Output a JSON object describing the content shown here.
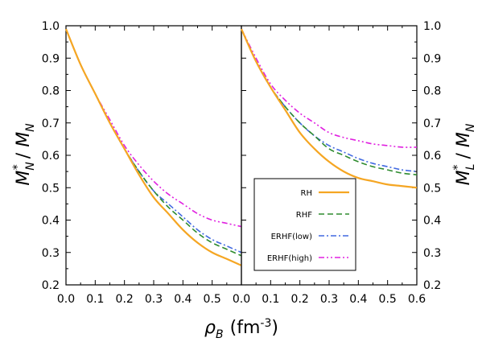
{
  "colors": {
    "RH": "#f5a623",
    "RHF": "#2e8b2e",
    "ERHF(low)": "#4169e1",
    "ERHF(high)": "#e020e0"
  },
  "labels": {
    "x_prefix": "ρ",
    "x_sub": "B",
    "x_unit": "(fm",
    "x_exp": "-3",
    "x_close": ")",
    "yleft_base": "M",
    "yleft_sup": "*",
    "yleft_sub": "N",
    "yleft_sep": " / ",
    "yleft_den": "M",
    "yleft_den_sub": "N",
    "yright_base": "M",
    "yright_sup": "*",
    "yright_sub": "L",
    "yright_sep": " / ",
    "yright_den": "M",
    "yright_den_sub": "N"
  },
  "chart_data": [
    {
      "type": "line",
      "panel": "left",
      "ylabel": "M_N^* / M_N",
      "xlim": [
        0,
        0.6
      ],
      "ylim": [
        0.2,
        1.0
      ],
      "xticks": [
        "0.0",
        "0.1",
        "0.2",
        "0.3",
        "0.4",
        "0.5"
      ],
      "yticks": [
        "0.2",
        "0.3",
        "0.4",
        "0.5",
        "0.6",
        "0.7",
        "0.8",
        "0.9",
        "1.0"
      ],
      "x": [
        0.0,
        0.05,
        0.1,
        0.15,
        0.2,
        0.25,
        0.3,
        0.35,
        0.4,
        0.45,
        0.5,
        0.55,
        0.6
      ],
      "series": [
        {
          "name": "RH",
          "values": [
            0.99,
            0.88,
            0.79,
            0.7,
            0.62,
            0.54,
            0.47,
            0.42,
            0.37,
            0.33,
            0.3,
            0.28,
            0.26
          ]
        },
        {
          "name": "RHF",
          "values": [
            0.99,
            0.88,
            0.79,
            0.7,
            0.62,
            0.55,
            0.49,
            0.44,
            0.4,
            0.36,
            0.33,
            0.31,
            0.29
          ]
        },
        {
          "name": "ERHF(low)",
          "values": [
            0.99,
            0.88,
            0.79,
            0.7,
            0.62,
            0.55,
            0.49,
            0.45,
            0.41,
            0.37,
            0.34,
            0.32,
            0.3
          ]
        },
        {
          "name": "ERHF(high)",
          "values": [
            0.99,
            0.88,
            0.79,
            0.71,
            0.63,
            0.57,
            0.52,
            0.48,
            0.45,
            0.42,
            0.4,
            0.39,
            0.38
          ]
        }
      ]
    },
    {
      "type": "line",
      "panel": "right",
      "ylabel": "M_L^* / M_N",
      "xlim": [
        0,
        0.6
      ],
      "ylim": [
        0.2,
        1.0
      ],
      "xticks": [
        "0.0",
        "0.1",
        "0.2",
        "0.3",
        "0.4",
        "0.5",
        "0.6"
      ],
      "yticks": [
        "0.2",
        "0.3",
        "0.4",
        "0.5",
        "0.6",
        "0.7",
        "0.8",
        "0.9",
        "1.0"
      ],
      "x": [
        0.0,
        0.05,
        0.1,
        0.15,
        0.2,
        0.25,
        0.3,
        0.35,
        0.4,
        0.45,
        0.5,
        0.55,
        0.6
      ],
      "series": [
        {
          "name": "RH",
          "values": [
            0.99,
            0.89,
            0.81,
            0.74,
            0.67,
            0.62,
            0.58,
            0.55,
            0.53,
            0.52,
            0.51,
            0.505,
            0.5
          ]
        },
        {
          "name": "RHF",
          "values": [
            0.99,
            0.89,
            0.81,
            0.75,
            0.7,
            0.66,
            0.62,
            0.6,
            0.58,
            0.565,
            0.555,
            0.545,
            0.54
          ]
        },
        {
          "name": "ERHF(low)",
          "values": [
            0.99,
            0.89,
            0.81,
            0.75,
            0.7,
            0.66,
            0.63,
            0.61,
            0.59,
            0.575,
            0.565,
            0.555,
            0.55
          ]
        },
        {
          "name": "ERHF(high)",
          "values": [
            0.99,
            0.9,
            0.82,
            0.77,
            0.73,
            0.7,
            0.67,
            0.655,
            0.645,
            0.635,
            0.63,
            0.625,
            0.625
          ]
        }
      ],
      "legend": {
        "placement": "lower-right",
        "entries": [
          "RH",
          "RHF",
          "ERHF(low)",
          "ERHF(high)"
        ]
      }
    }
  ]
}
